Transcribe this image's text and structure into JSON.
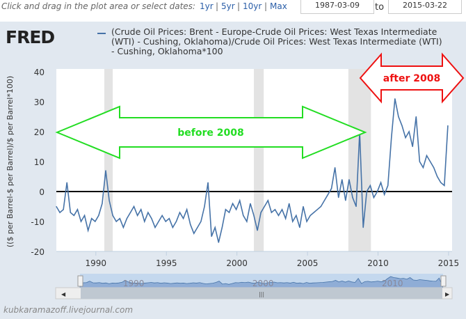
{
  "toolbar": {
    "hint": "Click and drag in the plot area or select dates:",
    "ranges": [
      "1yr",
      "5yr",
      "10yr",
      "Max"
    ],
    "start_date": "1987-03-09",
    "to_label": "to",
    "end_date": "2015-03-22"
  },
  "logo": "FRED",
  "footer": "kubkaramazoff.livejournal.com",
  "annotations": {
    "before": "before 2008",
    "after": "after 2008",
    "green": "#22dd22",
    "red": "#ee1111"
  },
  "chart_data": {
    "type": "line",
    "legend": "(Crude Oil Prices: Brent - Europe-Crude Oil Prices: West Texas Intermediate (WTI) - Cushing, Oklahoma)/Crude Oil Prices: West Texas Intermediate (WTI) - Cushing, Oklahoma*100",
    "ylabel": "(($ per Barrel-$ per Barrel)/$ per Barrel*100)",
    "ylim": [
      -20,
      40
    ],
    "yticks": [
      -20,
      -10,
      0,
      10,
      20,
      30,
      40
    ],
    "xlim": [
      1987.2,
      2015.25
    ],
    "xticks": [
      1990,
      1995,
      2000,
      2005,
      2010,
      2015
    ],
    "navigator_ticks": [
      "1990",
      "2000",
      "2010"
    ],
    "recessions": [
      [
        1990.6,
        1991.2
      ],
      [
        2001.2,
        2001.9
      ],
      [
        2007.9,
        2009.5
      ]
    ],
    "color": "#4572a7",
    "start": 1987.2,
    "step": 0.25,
    "values": [
      -5,
      -7,
      -6,
      3,
      -7,
      -8,
      -6,
      -10,
      -8,
      -13,
      -9,
      -10,
      -8,
      -4,
      7,
      -3,
      -8,
      -10,
      -9,
      -12,
      -9,
      -7,
      -5,
      -8,
      -6,
      -10,
      -7,
      -9,
      -12,
      -10,
      -8,
      -10,
      -9,
      -12,
      -10,
      -7,
      -9,
      -6,
      -11,
      -14,
      -12,
      -10,
      -5,
      3,
      -15,
      -12,
      -17,
      -12,
      -6,
      -7,
      -4,
      -6,
      -3,
      -8,
      -10,
      -4,
      -8,
      -13,
      -7,
      -5,
      -3,
      -7,
      -6,
      -8,
      -6,
      -9,
      -4,
      -10,
      -8,
      -12,
      -5,
      -10,
      -8,
      -7,
      -6,
      -5,
      -3,
      -1,
      1,
      8,
      -2,
      4,
      -3,
      4,
      -2,
      -5,
      20,
      -12,
      0,
      2,
      -2,
      0,
      3,
      -1,
      2,
      18,
      31,
      25,
      22,
      18,
      20,
      15,
      25,
      10,
      8,
      12,
      10,
      8,
      5,
      3,
      2,
      22
    ]
  }
}
